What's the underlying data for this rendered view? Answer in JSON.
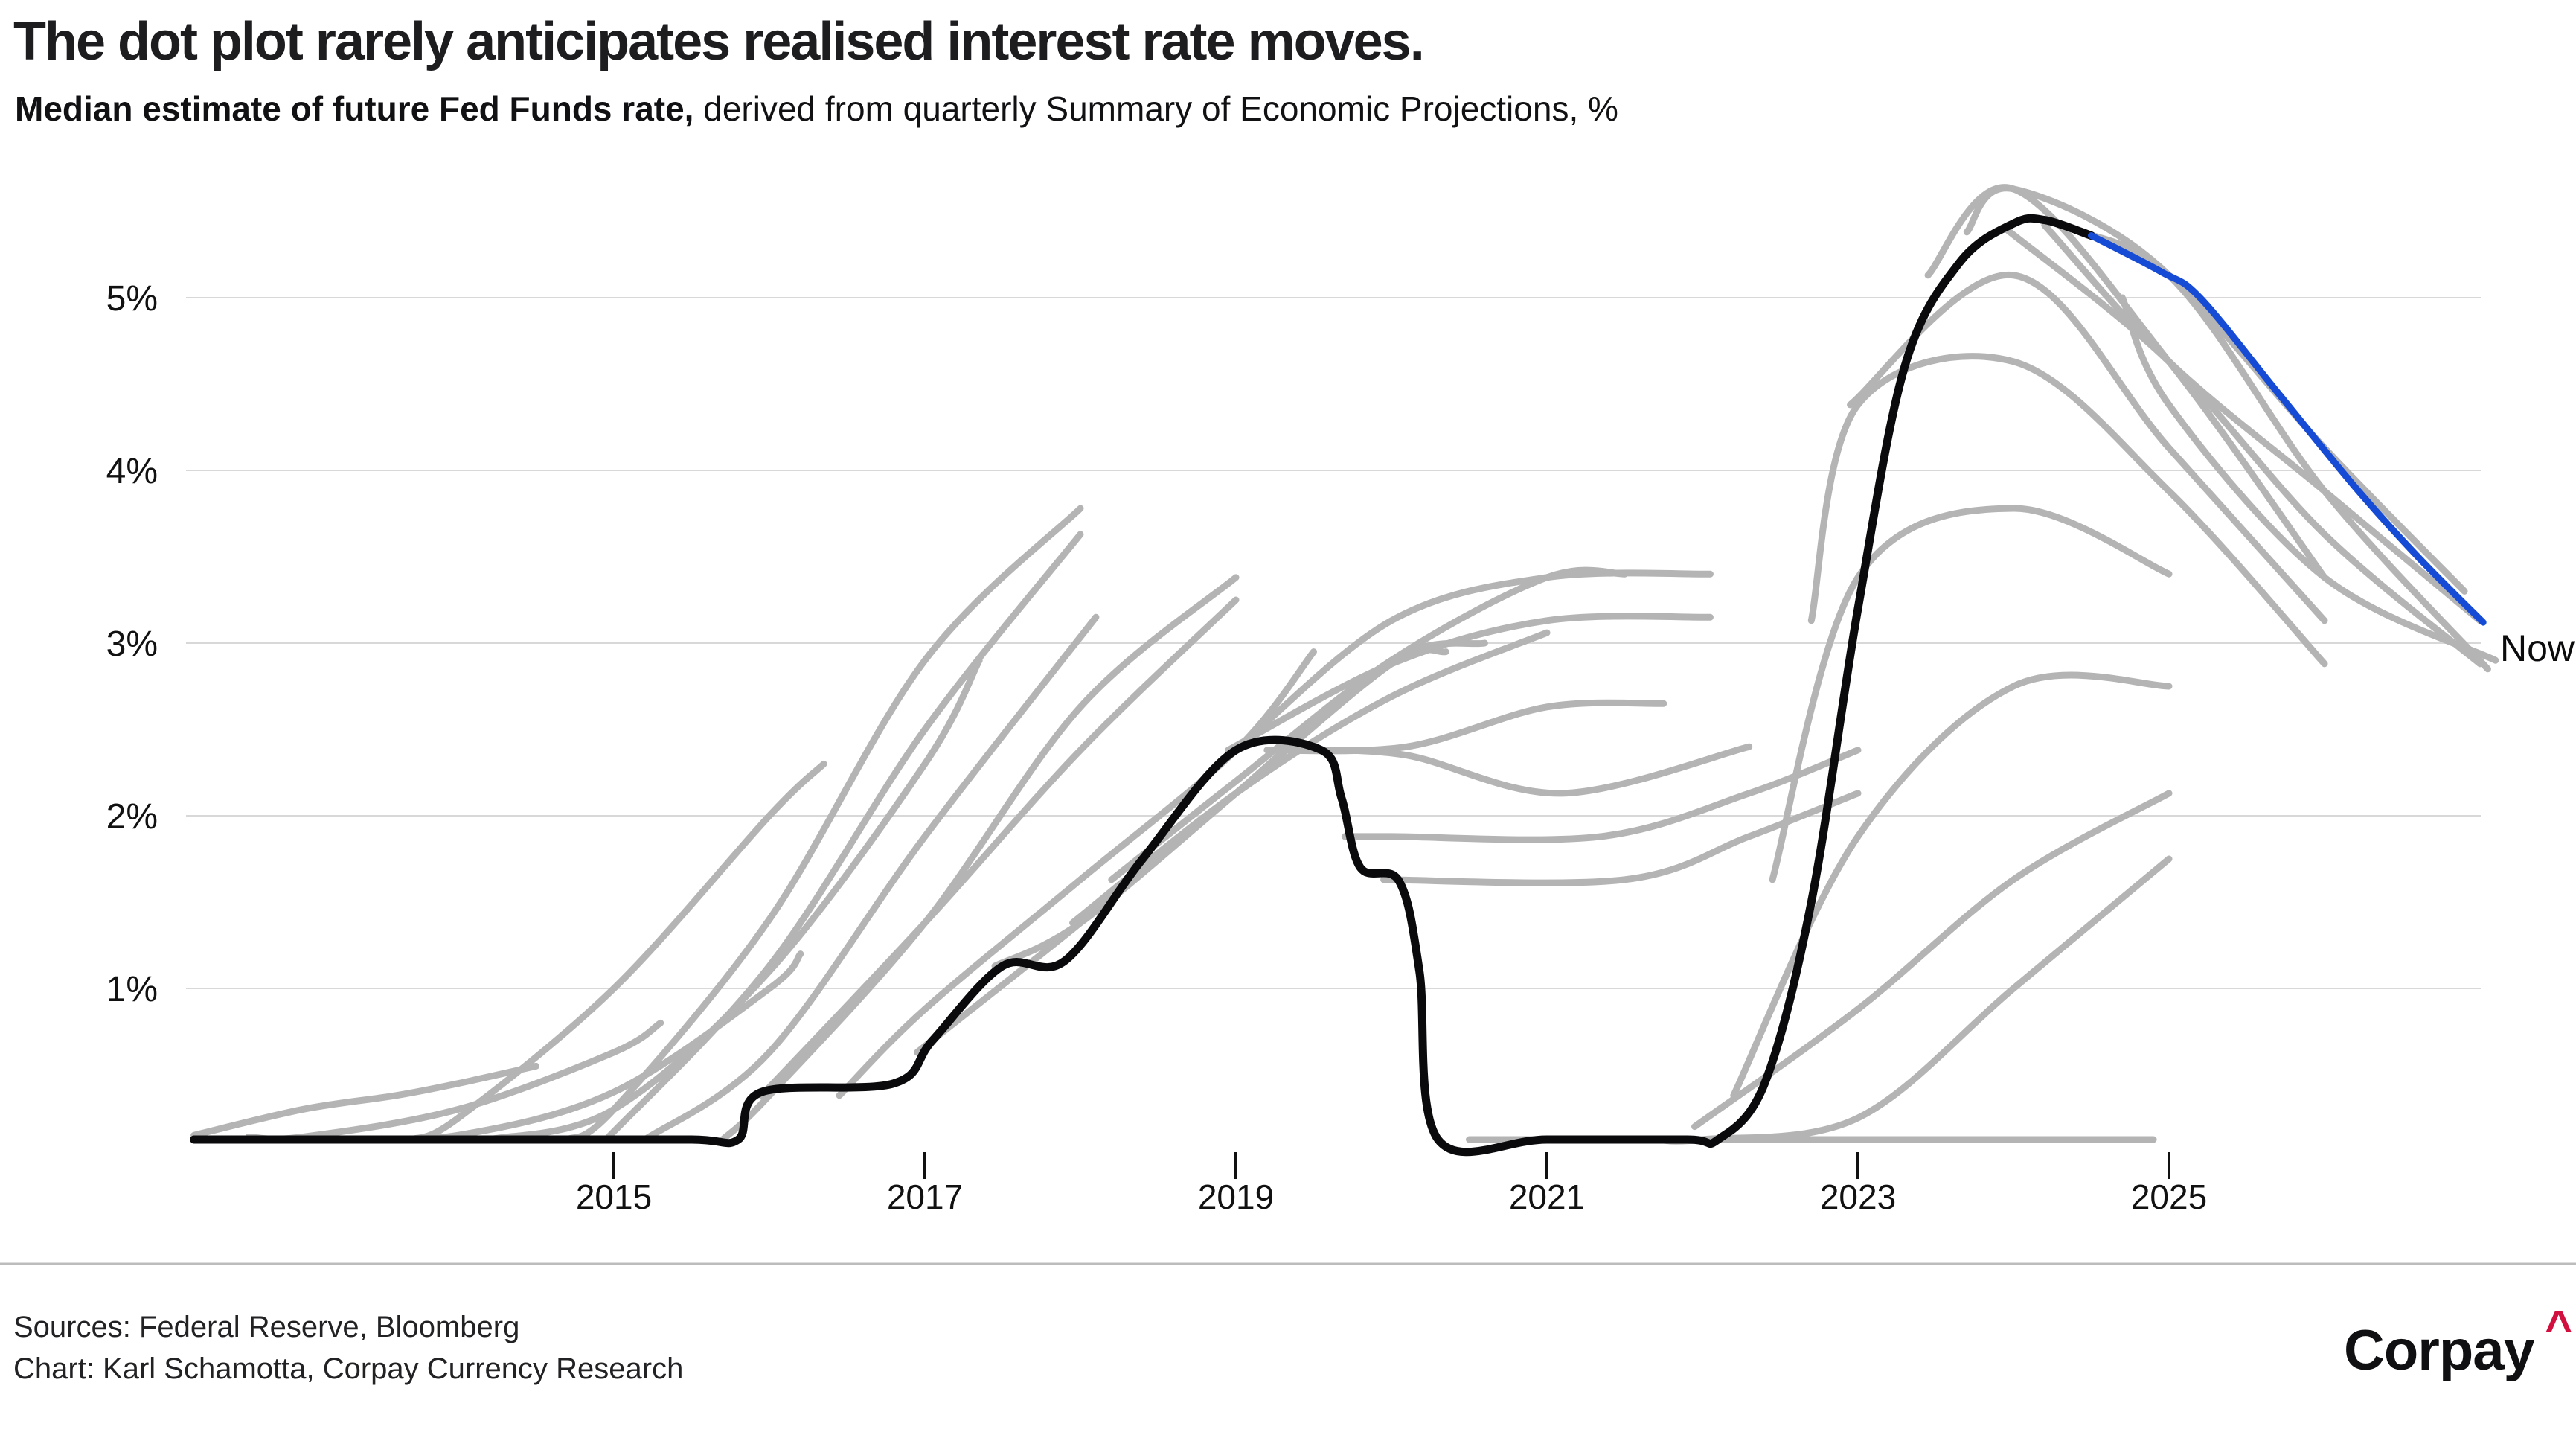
{
  "chart_data": {
    "type": "line",
    "title": "The dot plot rarely anticipates realised interest rate moves.",
    "subtitle_lead": "Median estimate of future Fed Funds rate,",
    "subtitle_rest": " derived from quarterly Summary of Economic Projections, %",
    "xlabel": "",
    "ylabel": "%",
    "xlim": [
      2012.2,
      2027.3
    ],
    "ylim": [
      0,
      5.8
    ],
    "grid": true,
    "legend_position": "none",
    "x_ticks": {
      "values": [
        2015,
        2017,
        2019,
        2021,
        2023,
        2025
      ],
      "labels": [
        "2015",
        "2017",
        "2019",
        "2021",
        "2023",
        "2025"
      ]
    },
    "y_ticks": {
      "values": [
        1,
        2,
        3,
        4,
        5
      ],
      "labels": [
        "1%",
        "2%",
        "3%",
        "4%",
        "5%"
      ]
    },
    "now_label": "Now",
    "colors": {
      "realized": "#0a0a0d",
      "now_path": "#164bd6",
      "projection": "#b4b4b4",
      "gridline": "#d8d8d8",
      "tick": "#111111"
    },
    "series": {
      "realized": {
        "points": [
          [
            2012.3,
            0.125
          ],
          [
            2014.5,
            0.125
          ],
          [
            2015.5,
            0.125
          ],
          [
            2015.8,
            0.125
          ],
          [
            2015.95,
            0.4
          ],
          [
            2016.8,
            0.45
          ],
          [
            2017.05,
            0.7
          ],
          [
            2017.5,
            1.13
          ],
          [
            2017.9,
            1.16
          ],
          [
            2018.4,
            1.75
          ],
          [
            2019.0,
            2.38
          ],
          [
            2019.55,
            2.38
          ],
          [
            2019.68,
            2.1
          ],
          [
            2019.8,
            1.7
          ],
          [
            2020.05,
            1.62
          ],
          [
            2020.18,
            1.1
          ],
          [
            2020.3,
            0.125
          ],
          [
            2021.0,
            0.125
          ],
          [
            2021.9,
            0.125
          ],
          [
            2022.1,
            0.125
          ],
          [
            2022.4,
            0.45
          ],
          [
            2022.7,
            1.5
          ],
          [
            2023.0,
            3.2
          ],
          [
            2023.3,
            4.6
          ],
          [
            2023.65,
            5.2
          ],
          [
            2024.0,
            5.43
          ],
          [
            2024.2,
            5.45
          ],
          [
            2024.5,
            5.36
          ]
        ]
      },
      "now_path": {
        "points": [
          [
            2024.5,
            5.36
          ],
          [
            2024.95,
            5.15
          ],
          [
            2025.2,
            5.0
          ],
          [
            2025.7,
            4.45
          ],
          [
            2026.2,
            3.9
          ],
          [
            2026.6,
            3.5
          ],
          [
            2027.02,
            3.12
          ]
        ]
      },
      "projections": {
        "lines": [
          [
            [
              2012.3,
              0.15
            ],
            [
              2013.0,
              0.3
            ],
            [
              2013.6,
              0.38
            ],
            [
              2014.0,
              0.45
            ],
            [
              2014.5,
              0.55
            ]
          ],
          [
            [
              2012.65,
              0.14
            ],
            [
              2013.0,
              0.14
            ],
            [
              2014.0,
              0.3
            ],
            [
              2015.0,
              0.63
            ],
            [
              2015.3,
              0.8
            ]
          ],
          [
            [
              2013.2,
              0.125
            ],
            [
              2014.0,
              0.15
            ],
            [
              2015.0,
              0.4
            ],
            [
              2016.0,
              1.0
            ],
            [
              2016.2,
              1.2
            ]
          ],
          [
            [
              2013.7,
              0.125
            ],
            [
              2014.0,
              0.25
            ],
            [
              2015.0,
              1.0
            ],
            [
              2016.0,
              2.0
            ],
            [
              2016.35,
              2.3
            ]
          ],
          [
            [
              2014.2,
              0.125
            ],
            [
              2015.0,
              0.3
            ],
            [
              2016.0,
              1.1
            ],
            [
              2017.0,
              2.3
            ],
            [
              2017.35,
              2.9
            ]
          ],
          [
            [
              2014.7,
              0.125
            ],
            [
              2015.0,
              0.3
            ],
            [
              2016.0,
              1.4
            ],
            [
              2017.0,
              2.9
            ],
            [
              2018.0,
              3.78
            ]
          ],
          [
            [
              2014.95,
              0.125
            ],
            [
              2016.0,
              1.13
            ],
            [
              2017.0,
              2.5
            ],
            [
              2018.0,
              3.63
            ]
          ],
          [
            [
              2015.2,
              0.125
            ],
            [
              2016.0,
              0.63
            ],
            [
              2017.0,
              1.88
            ],
            [
              2018.1,
              3.15
            ]
          ],
          [
            [
              2015.7,
              0.125
            ],
            [
              2016.0,
              0.38
            ],
            [
              2017.0,
              1.38
            ],
            [
              2018.0,
              2.63
            ],
            [
              2019.0,
              3.38
            ]
          ],
          [
            [
              2015.95,
              0.38
            ],
            [
              2017.0,
              1.38
            ],
            [
              2018.0,
              2.38
            ],
            [
              2019.0,
              3.25
            ]
          ],
          [
            [
              2016.45,
              0.38
            ],
            [
              2017.0,
              0.88
            ],
            [
              2018.0,
              1.63
            ],
            [
              2019.0,
              2.38
            ],
            [
              2019.5,
              2.95
            ]
          ],
          [
            [
              2016.95,
              0.63
            ],
            [
              2018.0,
              1.38
            ],
            [
              2019.0,
              2.13
            ],
            [
              2020.0,
              2.88
            ],
            [
              2020.35,
              2.95
            ]
          ],
          [
            [
              2017.45,
              1.13
            ],
            [
              2018.0,
              1.38
            ],
            [
              2019.0,
              2.13
            ],
            [
              2020.0,
              2.9
            ],
            [
              2020.6,
              3.0
            ]
          ],
          [
            [
              2017.95,
              1.38
            ],
            [
              2019.0,
              2.13
            ],
            [
              2020.0,
              2.69
            ],
            [
              2021.0,
              3.06
            ]
          ],
          [
            [
              2018.2,
              1.63
            ],
            [
              2019.0,
              2.2
            ],
            [
              2020.0,
              2.9
            ],
            [
              2021.0,
              3.38
            ],
            [
              2021.5,
              3.4
            ]
          ],
          [
            [
              2018.7,
              2.13
            ],
            [
              2019.0,
              2.38
            ],
            [
              2020.0,
              3.13
            ],
            [
              2021.0,
              3.38
            ],
            [
              2022.05,
              3.4
            ]
          ],
          [
            [
              2018.95,
              2.38
            ],
            [
              2020.0,
              2.88
            ],
            [
              2021.0,
              3.13
            ],
            [
              2022.05,
              3.15
            ]
          ],
          [
            [
              2019.2,
              2.38
            ],
            [
              2020.1,
              2.4
            ],
            [
              2021.0,
              2.63
            ],
            [
              2021.75,
              2.65
            ]
          ],
          [
            [
              2019.45,
              2.38
            ],
            [
              2020.1,
              2.35
            ],
            [
              2021.1,
              2.13
            ],
            [
              2022.3,
              2.4
            ]
          ],
          [
            [
              2019.7,
              1.88
            ],
            [
              2020.0,
              1.88
            ],
            [
              2021.35,
              1.88
            ],
            [
              2022.3,
              2.13
            ],
            [
              2023.0,
              2.38
            ]
          ],
          [
            [
              2019.95,
              1.63
            ],
            [
              2021.5,
              1.63
            ],
            [
              2022.3,
              1.88
            ],
            [
              2023.0,
              2.13
            ]
          ],
          [
            [
              2020.5,
              0.125
            ],
            [
              2022.0,
              0.125
            ],
            [
              2023.0,
              0.125
            ],
            [
              2024.0,
              0.125
            ],
            [
              2024.9,
              0.125
            ]
          ],
          [
            [
              2021.7,
              0.125
            ],
            [
              2022.0,
              0.125
            ],
            [
              2023.0,
              0.25
            ],
            [
              2024.0,
              1.0
            ],
            [
              2025.0,
              1.75
            ]
          ],
          [
            [
              2021.95,
              0.2
            ],
            [
              2023.0,
              0.88
            ],
            [
              2024.0,
              1.63
            ],
            [
              2025.0,
              2.13
            ]
          ],
          [
            [
              2022.2,
              0.38
            ],
            [
              2023.0,
              1.88
            ],
            [
              2024.0,
              2.75
            ],
            [
              2025.0,
              2.75
            ]
          ],
          [
            [
              2022.45,
              1.63
            ],
            [
              2023.0,
              3.38
            ],
            [
              2024.0,
              3.78
            ],
            [
              2025.0,
              3.4
            ]
          ],
          [
            [
              2022.7,
              3.13
            ],
            [
              2023.0,
              4.38
            ],
            [
              2024.0,
              4.63
            ],
            [
              2025.0,
              3.88
            ],
            [
              2026.0,
              2.88
            ]
          ],
          [
            [
              2022.95,
              4.38
            ],
            [
              2024.0,
              5.13
            ],
            [
              2025.0,
              4.13
            ],
            [
              2026.0,
              3.13
            ]
          ],
          [
            [
              2023.45,
              5.13
            ],
            [
              2024.0,
              5.63
            ],
            [
              2025.0,
              4.63
            ],
            [
              2026.0,
              3.38
            ]
          ],
          [
            [
              2023.7,
              5.38
            ],
            [
              2024.0,
              5.63
            ],
            [
              2025.0,
              5.13
            ],
            [
              2026.0,
              3.88
            ],
            [
              2027.05,
              2.85
            ]
          ],
          [
            [
              2023.95,
              5.4
            ],
            [
              2025.0,
              4.63
            ],
            [
              2026.0,
              3.63
            ],
            [
              2027.0,
              2.88
            ]
          ],
          [
            [
              2024.2,
              5.42
            ],
            [
              2025.0,
              4.63
            ],
            [
              2026.0,
              3.88
            ],
            [
              2027.0,
              3.13
            ]
          ],
          [
            [
              2024.45,
              5.38
            ],
            [
              2025.0,
              5.13
            ],
            [
              2026.0,
              4.13
            ],
            [
              2026.9,
              3.3
            ]
          ],
          [
            [
              2024.7,
              5.0
            ],
            [
              2025.0,
              4.38
            ],
            [
              2026.0,
              3.38
            ],
            [
              2027.1,
              2.9
            ]
          ]
        ]
      }
    }
  },
  "footer": {
    "sources_line1": "Sources: Federal Reserve, Bloomberg",
    "sources_line2": "Chart: Karl Schamotta, Corpay Currency Research",
    "logo_text": "Corpay",
    "logo_caret": "^",
    "logo_caret_color": "#d2103f"
  }
}
